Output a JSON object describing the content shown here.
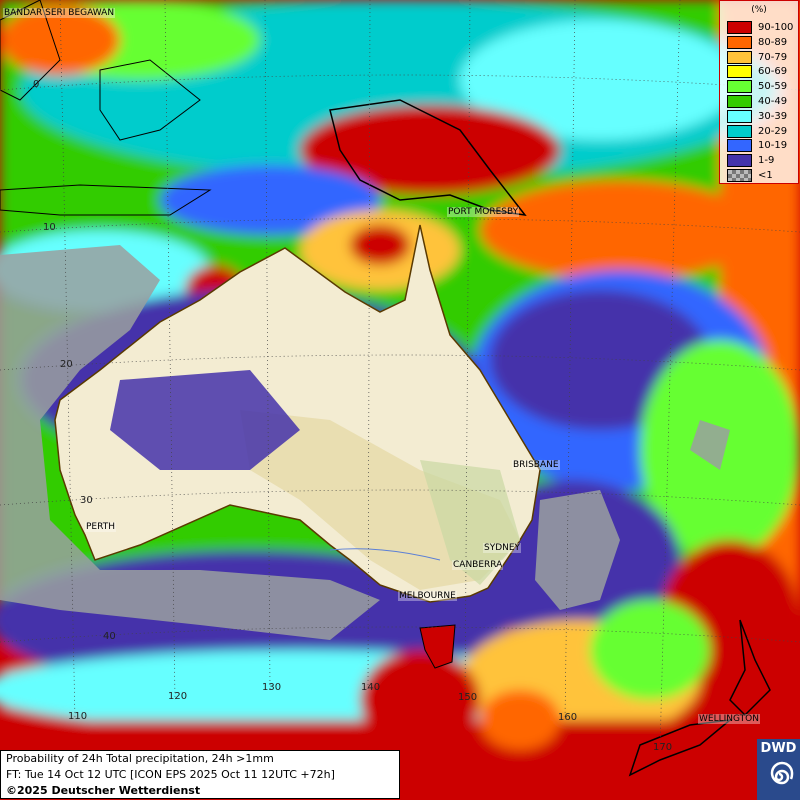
{
  "map": {
    "type": "probability map",
    "cities": [
      "BANDAR SERI BEGAWAN",
      "PORT MORESBY",
      "BRISBANE",
      "SYDNEY",
      "CANBERRA",
      "MELBOURNE",
      "PERTH",
      "WELLINGTON"
    ],
    "lat_labels": [
      "0",
      "10",
      "20",
      "30",
      "40"
    ],
    "lon_labels": [
      "110",
      "120",
      "130",
      "140",
      "150",
      "160",
      "170"
    ]
  },
  "legend": {
    "title": "(%)",
    "items": [
      {
        "label": "90-100",
        "color": "#cc0000"
      },
      {
        "label": "80-89",
        "color": "#ff6600"
      },
      {
        "label": "70-79",
        "color": "#ffc33a"
      },
      {
        "label": "60-69",
        "color": "#ffff00"
      },
      {
        "label": "50-59",
        "color": "#66ff33"
      },
      {
        "label": "40-49",
        "color": "#33cc00"
      },
      {
        "label": "30-39",
        "color": "#66ffff"
      },
      {
        "label": "20-29",
        "color": "#00cccc"
      },
      {
        "label": "10-19",
        "color": "#3366ff"
      },
      {
        "label": "1-9",
        "color": "#4433aa"
      },
      {
        "label": "<1",
        "color": "checker"
      }
    ]
  },
  "info": {
    "line1": "Probability of 24h Total precipitation, 24h >1mm",
    "line2": "FT: Tue 14 Oct 12 UTC [ICON EPS 2025 Oct 11 12UTC +72h]",
    "line3": "©2025 Deutscher Wetterdienst"
  },
  "logo": {
    "text": "DWD",
    "icon": "dwd-swirl-logo"
  }
}
